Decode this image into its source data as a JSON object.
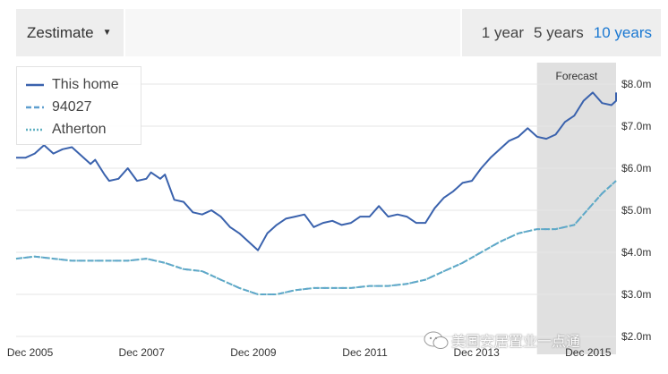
{
  "header": {
    "metric_label": "Zestimate",
    "ranges": [
      {
        "label": "1 year",
        "active": false
      },
      {
        "label": "5 years",
        "active": false
      },
      {
        "label": "10 years",
        "active": true
      }
    ]
  },
  "colors": {
    "accent": "#1a78d2",
    "this_home": "#3a62ad",
    "zip": "#5f9fcf",
    "city": "#5fb0c1",
    "forecast_band": "#e0e0e0"
  },
  "chart_data": {
    "type": "line",
    "forecast_label": "Forecast",
    "forecast_start": "2015-01",
    "x_tick_labels": [
      "Dec 2005",
      "Dec 2007",
      "Dec 2009",
      "Dec 2011",
      "Dec 2013",
      "Dec 2015"
    ],
    "x_ticks": [
      "2005-12",
      "2007-12",
      "2009-12",
      "2011-12",
      "2013-12",
      "2015-12"
    ],
    "x_range": [
      "2005-09",
      "2016-06"
    ],
    "ylim": [
      2.0,
      8.0
    ],
    "y_ticks": [
      2.0,
      3.0,
      4.0,
      5.0,
      6.0,
      7.0,
      8.0
    ],
    "y_tick_labels": [
      "$2.0m",
      "$3.0m",
      "$4.0m",
      "$5.0m",
      "$6.0m",
      "$7.0m",
      "$8.0m"
    ],
    "grid": true,
    "legend_position": "top-left",
    "series": [
      {
        "name": "This home",
        "style": "solid",
        "points": [
          [
            "2005-09",
            6.25
          ],
          [
            "2005-11",
            6.25
          ],
          [
            "2006-01",
            6.35
          ],
          [
            "2006-03",
            6.55
          ],
          [
            "2006-05",
            6.35
          ],
          [
            "2006-07",
            6.45
          ],
          [
            "2006-09",
            6.5
          ],
          [
            "2006-11",
            6.3
          ],
          [
            "2007-01",
            6.1
          ],
          [
            "2007-02",
            6.2
          ],
          [
            "2007-04",
            5.85
          ],
          [
            "2007-05",
            5.7
          ],
          [
            "2007-07",
            5.75
          ],
          [
            "2007-09",
            6.0
          ],
          [
            "2007-11",
            5.7
          ],
          [
            "2008-01",
            5.75
          ],
          [
            "2008-02",
            5.9
          ],
          [
            "2008-04",
            5.75
          ],
          [
            "2008-05",
            5.85
          ],
          [
            "2008-07",
            5.25
          ],
          [
            "2008-09",
            5.2
          ],
          [
            "2008-11",
            4.95
          ],
          [
            "2009-01",
            4.9
          ],
          [
            "2009-03",
            5.0
          ],
          [
            "2009-05",
            4.85
          ],
          [
            "2009-07",
            4.6
          ],
          [
            "2009-09",
            4.45
          ],
          [
            "2009-11",
            4.25
          ],
          [
            "2010-01",
            4.05
          ],
          [
            "2010-03",
            4.45
          ],
          [
            "2010-05",
            4.65
          ],
          [
            "2010-07",
            4.8
          ],
          [
            "2010-09",
            4.85
          ],
          [
            "2010-11",
            4.9
          ],
          [
            "2011-01",
            4.6
          ],
          [
            "2011-03",
            4.7
          ],
          [
            "2011-05",
            4.75
          ],
          [
            "2011-07",
            4.65
          ],
          [
            "2011-09",
            4.7
          ],
          [
            "2011-11",
            4.85
          ],
          [
            "2012-01",
            4.85
          ],
          [
            "2012-03",
            5.1
          ],
          [
            "2012-05",
            4.85
          ],
          [
            "2012-07",
            4.9
          ],
          [
            "2012-09",
            4.85
          ],
          [
            "2012-11",
            4.7
          ],
          [
            "2013-01",
            4.7
          ],
          [
            "2013-03",
            5.05
          ],
          [
            "2013-05",
            5.3
          ],
          [
            "2013-07",
            5.45
          ],
          [
            "2013-09",
            5.65
          ],
          [
            "2013-11",
            5.7
          ],
          [
            "2014-01",
            6.0
          ],
          [
            "2014-03",
            6.25
          ],
          [
            "2014-05",
            6.45
          ],
          [
            "2014-07",
            6.65
          ],
          [
            "2014-09",
            6.75
          ],
          [
            "2014-11",
            6.95
          ],
          [
            "2015-01",
            6.75
          ],
          [
            "2015-03",
            6.7
          ],
          [
            "2015-05",
            6.8
          ],
          [
            "2015-07",
            7.1
          ],
          [
            "2015-09",
            7.25
          ],
          [
            "2015-11",
            7.6
          ],
          [
            "2016-01",
            7.8
          ],
          [
            "2016-03",
            7.55
          ],
          [
            "2016-05",
            7.5
          ],
          [
            "2016-06",
            7.6
          ],
          [
            "2016-06",
            7.7
          ],
          [
            "2016-06",
            7.8
          ]
        ]
      },
      {
        "name": "94027",
        "style": "dashed",
        "points": [
          [
            "2005-09",
            3.85
          ],
          [
            "2006-01",
            3.9
          ],
          [
            "2006-05",
            3.85
          ],
          [
            "2006-09",
            3.8
          ],
          [
            "2007-01",
            3.8
          ],
          [
            "2007-05",
            3.8
          ],
          [
            "2007-09",
            3.8
          ],
          [
            "2008-01",
            3.85
          ],
          [
            "2008-05",
            3.75
          ],
          [
            "2008-09",
            3.6
          ],
          [
            "2009-01",
            3.55
          ],
          [
            "2009-05",
            3.35
          ],
          [
            "2009-09",
            3.15
          ],
          [
            "2010-01",
            3.0
          ],
          [
            "2010-05",
            3.0
          ],
          [
            "2010-09",
            3.1
          ],
          [
            "2011-01",
            3.15
          ],
          [
            "2011-05",
            3.15
          ],
          [
            "2011-09",
            3.15
          ],
          [
            "2012-01",
            3.2
          ],
          [
            "2012-05",
            3.2
          ],
          [
            "2012-09",
            3.25
          ],
          [
            "2013-01",
            3.35
          ],
          [
            "2013-05",
            3.55
          ],
          [
            "2013-09",
            3.75
          ],
          [
            "2014-01",
            4.0
          ],
          [
            "2014-05",
            4.25
          ],
          [
            "2014-09",
            4.45
          ],
          [
            "2015-01",
            4.55
          ],
          [
            "2015-05",
            4.55
          ],
          [
            "2015-09",
            4.65
          ],
          [
            "2016-01",
            5.15
          ],
          [
            "2016-03",
            5.4
          ],
          [
            "2016-06",
            5.7
          ]
        ]
      },
      {
        "name": "Atherton",
        "style": "dotted",
        "points": [
          [
            "2005-09",
            3.85
          ],
          [
            "2006-01",
            3.9
          ],
          [
            "2006-05",
            3.85
          ],
          [
            "2006-09",
            3.8
          ],
          [
            "2007-01",
            3.8
          ],
          [
            "2007-05",
            3.8
          ],
          [
            "2007-09",
            3.8
          ],
          [
            "2008-01",
            3.85
          ],
          [
            "2008-05",
            3.75
          ],
          [
            "2008-09",
            3.6
          ],
          [
            "2009-01",
            3.55
          ],
          [
            "2009-05",
            3.35
          ],
          [
            "2009-09",
            3.15
          ],
          [
            "2010-01",
            3.0
          ],
          [
            "2010-05",
            3.0
          ],
          [
            "2010-09",
            3.1
          ],
          [
            "2011-01",
            3.15
          ],
          [
            "2011-05",
            3.15
          ],
          [
            "2011-09",
            3.15
          ],
          [
            "2012-01",
            3.2
          ],
          [
            "2012-05",
            3.2
          ],
          [
            "2012-09",
            3.25
          ],
          [
            "2013-01",
            3.35
          ],
          [
            "2013-05",
            3.55
          ],
          [
            "2013-09",
            3.75
          ],
          [
            "2014-01",
            4.0
          ],
          [
            "2014-05",
            4.25
          ],
          [
            "2014-09",
            4.45
          ],
          [
            "2015-01",
            4.55
          ],
          [
            "2015-05",
            4.55
          ],
          [
            "2015-09",
            4.65
          ],
          [
            "2016-01",
            5.15
          ],
          [
            "2016-03",
            5.4
          ],
          [
            "2016-06",
            5.7
          ]
        ]
      }
    ]
  },
  "watermark": {
    "text": "美国安居置业一点通"
  }
}
